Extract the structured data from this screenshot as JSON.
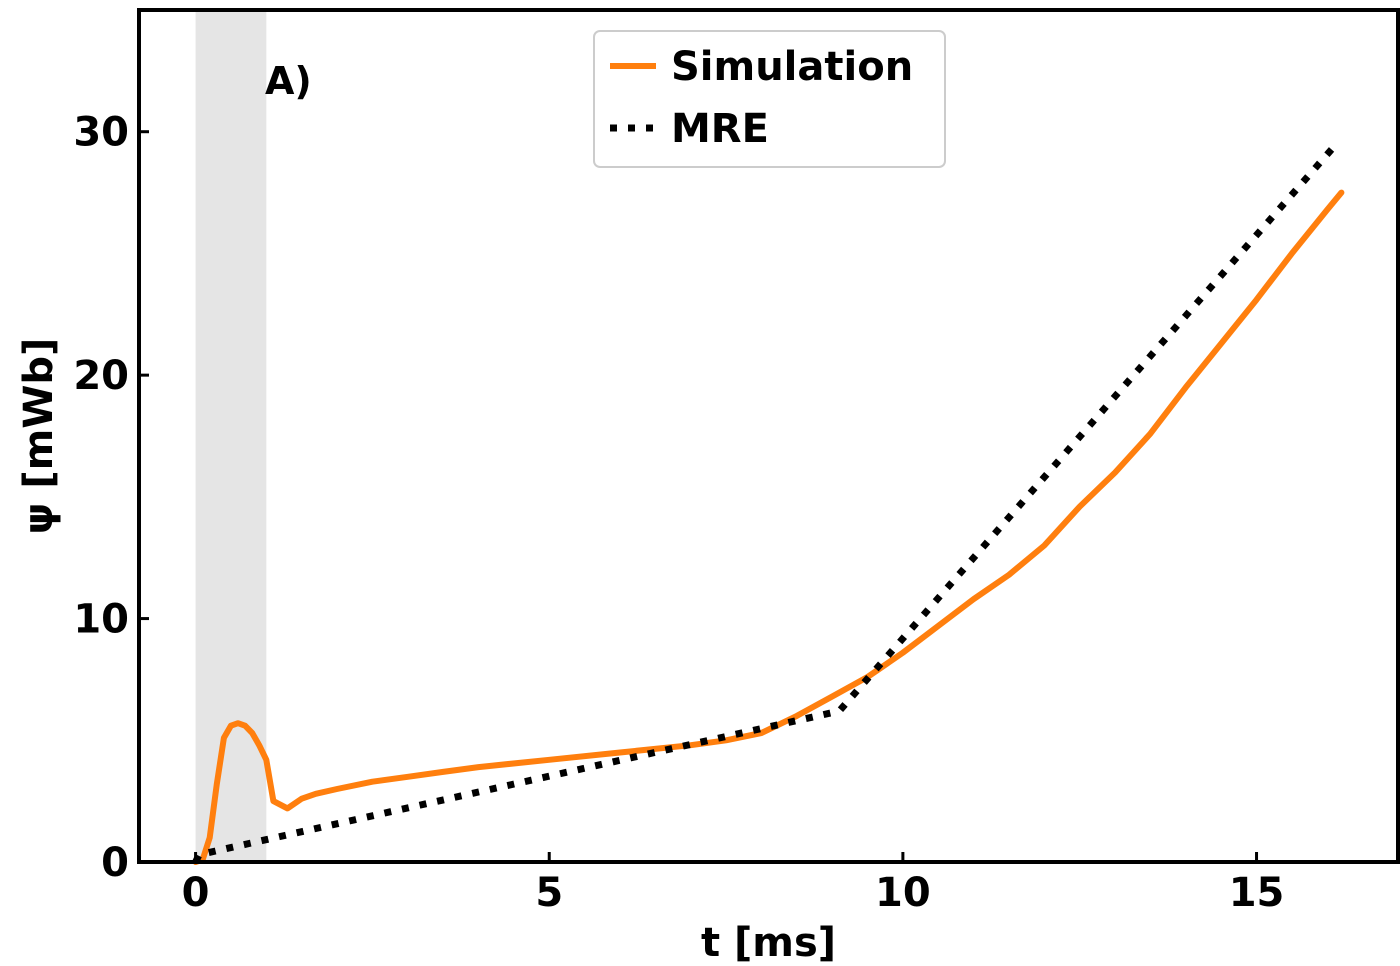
{
  "chart_data": {
    "type": "line",
    "panel_label": "A)",
    "xlabel": "t [ms]",
    "ylabel": "ψ [mWb]",
    "xlim": [
      -0.8,
      17
    ],
    "ylim": [
      0,
      35
    ],
    "xticks": [
      0,
      5,
      10,
      15
    ],
    "yticks": [
      0,
      10,
      20,
      30
    ],
    "grid": false,
    "legend_position": "top-center",
    "shaded_region": {
      "x_start": 0.0,
      "x_end": 1.0,
      "color": "#e5e5e5"
    },
    "series": [
      {
        "name": "Simulation",
        "style": "solid",
        "color": "#ff7f0e",
        "x": [
          0.0,
          0.1,
          0.2,
          0.3,
          0.4,
          0.5,
          0.6,
          0.7,
          0.8,
          0.9,
          1.0,
          1.1,
          1.3,
          1.5,
          1.7,
          2.0,
          2.5,
          3.0,
          3.5,
          4.0,
          5.0,
          6.0,
          7.0,
          7.5,
          8.0,
          8.5,
          9.0,
          9.5,
          10.0,
          10.5,
          11.0,
          11.5,
          12.0,
          12.5,
          13.0,
          13.5,
          14.0,
          14.5,
          15.0,
          15.5,
          16.0,
          16.2
        ],
        "y": [
          0.0,
          0.1,
          1.0,
          3.2,
          5.1,
          5.6,
          5.7,
          5.6,
          5.3,
          4.8,
          4.2,
          2.5,
          2.2,
          2.6,
          2.8,
          3.0,
          3.3,
          3.5,
          3.7,
          3.9,
          4.2,
          4.5,
          4.8,
          5.0,
          5.3,
          6.0,
          6.8,
          7.6,
          8.6,
          9.7,
          10.8,
          11.8,
          13.0,
          14.6,
          16.0,
          17.6,
          19.5,
          21.3,
          23.1,
          25.0,
          26.8,
          27.5
        ]
      },
      {
        "name": "MRE",
        "style": "dotted",
        "color": "#000000",
        "x": [
          0.0,
          0.05,
          9.1,
          16.1
        ],
        "y": [
          0.0,
          0.3,
          6.2,
          29.4
        ]
      }
    ]
  }
}
